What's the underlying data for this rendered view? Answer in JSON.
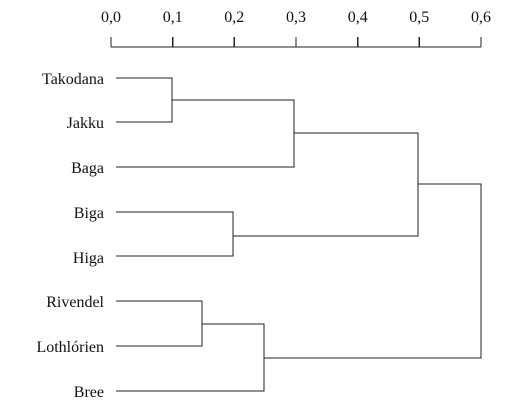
{
  "axis": {
    "ticks": [
      "0,0",
      "0,1",
      "0,2",
      "0,3",
      "0,4",
      "0,5",
      "0,6"
    ],
    "range": [
      0,
      0.6
    ]
  },
  "leaves": [
    "Takodana",
    "Jakku",
    "Baga",
    "Biga",
    "Higa",
    "Rivendel",
    "Lothlórien",
    "Bree"
  ],
  "merges": [
    {
      "left": "Takodana",
      "right": "Jakku",
      "height": 0.1
    },
    {
      "left": "Takodana+Jakku",
      "right": "Baga",
      "height": 0.3
    },
    {
      "left": "Biga",
      "right": "Higa",
      "height": 0.2
    },
    {
      "left": "Takodana+Jakku+Baga",
      "right": "Biga+Higa",
      "height": 0.5
    },
    {
      "left": "Rivendel",
      "right": "Lothlórien",
      "height": 0.15
    },
    {
      "left": "Rivendel+Lothlórien",
      "right": "Bree",
      "height": 0.25
    },
    {
      "left": "Takodana+Jakku+Baga+Biga+Higa",
      "right": "Rivendel+Lothlórien+Bree",
      "height": 0.6
    }
  ]
}
